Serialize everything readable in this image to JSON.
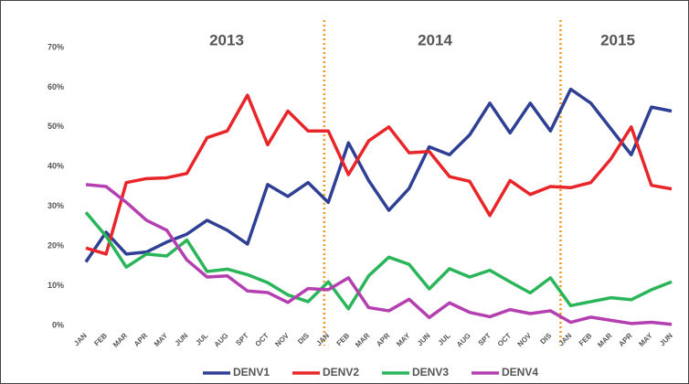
{
  "chart_data": {
    "type": "line",
    "annotations": [
      "2013",
      "2014",
      "2015"
    ],
    "categories": [
      "JAN",
      "FEB",
      "MAR",
      "APR",
      "MAY",
      "JUN",
      "JUL",
      "AUG",
      "SPT",
      "OCT",
      "NOV",
      "DIS",
      "JAN",
      "FEB",
      "MAR",
      "APR",
      "MAY",
      "JUN",
      "JUL",
      "AUG",
      "SPT",
      "OCT",
      "NOV",
      "DIS",
      "JAN",
      "FEB",
      "MAR",
      "APR",
      "MAY",
      "JUN"
    ],
    "series": [
      {
        "name": "DENV1",
        "color": "#2e3f94",
        "values": [
          16,
          23.5,
          18,
          18.5,
          21,
          23,
          26.5,
          24,
          20.5,
          35.5,
          32.5,
          36,
          31,
          46,
          36.5,
          29,
          34.5,
          45,
          43,
          48,
          56,
          48.5,
          56,
          49,
          59.5,
          56,
          49.5,
          43,
          55,
          54
        ]
      },
      {
        "name": "DENV2",
        "color": "#e8262a",
        "values": [
          19.5,
          18,
          36,
          37,
          37.2,
          38.3,
          47.3,
          49,
          58,
          45.5,
          54,
          49,
          49,
          38,
          46.5,
          50,
          43.5,
          43.8,
          37.5,
          36.3,
          27.7,
          36.5,
          33,
          35,
          34.7,
          36,
          42,
          50,
          35.3,
          34.4
        ]
      },
      {
        "name": "DENV3",
        "color": "#2ab55a",
        "values": [
          28.5,
          22.5,
          14.7,
          18,
          17.5,
          21.5,
          13.6,
          14.2,
          12.8,
          10.8,
          7.7,
          6,
          11,
          4.2,
          12.5,
          17.2,
          15.4,
          9.2,
          14.3,
          12.2,
          13.9,
          11,
          8.2,
          12,
          5,
          6,
          7,
          6.5,
          9,
          11
        ]
      },
      {
        "name": "DENV4",
        "color": "#b43fb0",
        "values": [
          35.5,
          35,
          31,
          26.5,
          24,
          16.5,
          12.2,
          12.5,
          8.7,
          8.3,
          5.8,
          9.3,
          9,
          12,
          4.5,
          3.7,
          6.6,
          2,
          5.7,
          3.3,
          2.2,
          4,
          3,
          3.7,
          0.8,
          2.1,
          1.3,
          0.5,
          0.8,
          0.3
        ]
      }
    ],
    "ylim": [
      0,
      70
    ],
    "yticks": [
      {
        "value": 0,
        "label": "0%"
      },
      {
        "value": 10,
        "label": "10%"
      },
      {
        "value": 20,
        "label": "20%"
      },
      {
        "value": 30,
        "label": "30%"
      },
      {
        "value": 40,
        "label": "40%"
      },
      {
        "value": 50,
        "label": "50%"
      },
      {
        "value": 60,
        "label": "60%"
      },
      {
        "value": 70,
        "label": "70%"
      }
    ],
    "legend": "bottom"
  }
}
